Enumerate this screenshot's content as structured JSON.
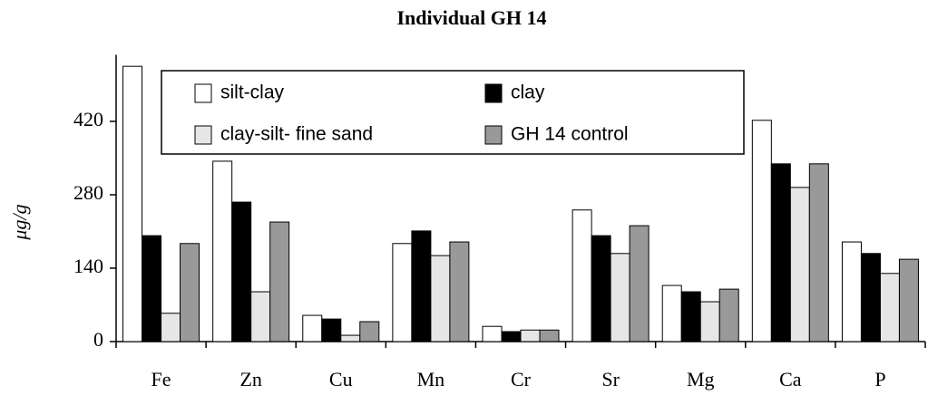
{
  "chart_data": {
    "type": "bar",
    "title": "Individual GH 14",
    "y_label": "μg/g",
    "categories": [
      "Fe",
      "Zn",
      "Cu",
      "Mn",
      "Cr",
      "Sr",
      "Mg",
      "Ca",
      "P"
    ],
    "series": [
      {
        "name": "silt-clay",
        "color": "#ffffff",
        "values": [
          525,
          344,
          50,
          187,
          29,
          251,
          107,
          422,
          190
        ]
      },
      {
        "name": "clay",
        "color": "#000000",
        "values": [
          202,
          266,
          43,
          211,
          19,
          202,
          95,
          339,
          168
        ]
      },
      {
        "name": "clay-silt- fine sand",
        "color": "#e6e6e6",
        "values": [
          54,
          95,
          12,
          164,
          22,
          168,
          76,
          294,
          130
        ]
      },
      {
        "name": "GH 14 control",
        "color": "#999999",
        "values": [
          187,
          228,
          38,
          190,
          22,
          221,
          100,
          339,
          157
        ]
      }
    ],
    "ylim": [
      0,
      540
    ],
    "yticks": [
      0,
      140,
      280,
      420
    ]
  }
}
